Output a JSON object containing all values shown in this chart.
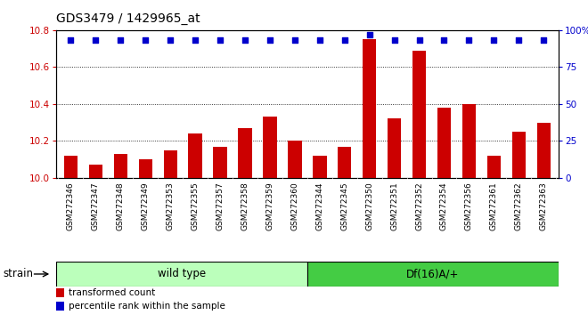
{
  "title": "GDS3479 / 1429965_at",
  "samples": [
    "GSM272346",
    "GSM272347",
    "GSM272348",
    "GSM272349",
    "GSM272353",
    "GSM272355",
    "GSM272357",
    "GSM272358",
    "GSM272359",
    "GSM272360",
    "GSM272344",
    "GSM272345",
    "GSM272350",
    "GSM272351",
    "GSM272352",
    "GSM272354",
    "GSM272356",
    "GSM272361",
    "GSM272362",
    "GSM272363"
  ],
  "bar_values": [
    10.12,
    10.07,
    10.13,
    10.1,
    10.15,
    10.24,
    10.17,
    10.27,
    10.33,
    10.2,
    10.12,
    10.17,
    10.75,
    10.32,
    10.69,
    10.38,
    10.4,
    10.12,
    10.25,
    10.3
  ],
  "percentile_values": [
    93,
    93,
    93,
    93,
    93,
    93,
    93,
    93,
    93,
    93,
    93,
    93,
    97,
    93,
    93,
    93,
    93,
    93,
    93,
    93
  ],
  "wild_type_count": 10,
  "df16_count": 10,
  "ylim_left": [
    10.0,
    10.8
  ],
  "ylim_right": [
    0,
    100
  ],
  "yticks_left": [
    10.0,
    10.2,
    10.4,
    10.6,
    10.8
  ],
  "yticks_right": [
    0,
    25,
    50,
    75,
    100
  ],
  "bar_color": "#cc0000",
  "dot_color": "#0000cc",
  "wild_type_color": "#bbffbb",
  "df16_color": "#44cc44",
  "xticklabel_bg": "#cccccc",
  "legend_red_label": "transformed count",
  "legend_blue_label": "percentile rank within the sample",
  "strain_label": "strain",
  "wild_type_label": "wild type",
  "df16_label": "Df(16)A/+"
}
